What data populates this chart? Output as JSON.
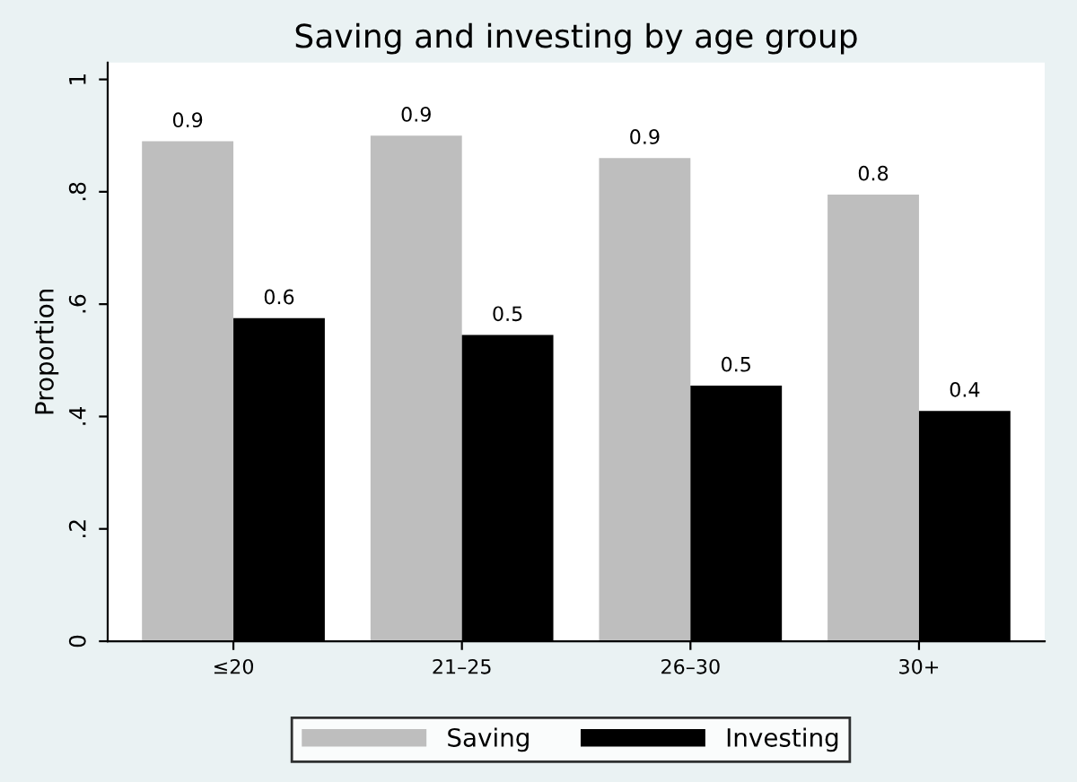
{
  "chart_data": {
    "type": "bar",
    "title": "Saving and investing by age group",
    "ylabel": "Proportion",
    "categories": [
      "≤20",
      "21–25",
      "26–30",
      "30+"
    ],
    "series": [
      {
        "name": "Saving",
        "color": "#bebebe",
        "values": [
          0.89,
          0.9,
          0.86,
          0.795
        ],
        "value_labels": [
          "0.9",
          "0.9",
          "0.9",
          "0.8"
        ]
      },
      {
        "name": "Investing",
        "color": "#000000",
        "values": [
          0.575,
          0.545,
          0.455,
          0.41
        ],
        "value_labels": [
          "0.6",
          "0.5",
          "0.5",
          "0.4"
        ]
      }
    ],
    "ylim": [
      0,
      1.03
    ],
    "yticks": [
      0,
      {
        "value": 0.2,
        "label": ".2"
      },
      {
        "value": 0.4,
        "label": ".4"
      },
      {
        "value": 0.6,
        "label": ".6"
      },
      {
        "value": 0.8,
        "label": ".8"
      },
      1
    ],
    "grid": false,
    "legend": "bottom"
  }
}
